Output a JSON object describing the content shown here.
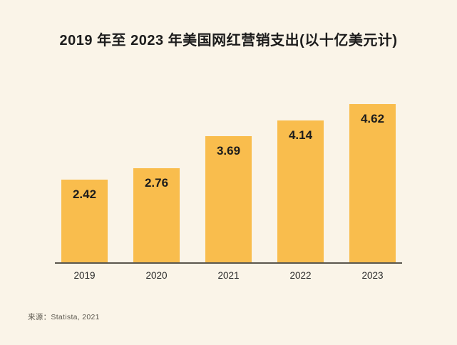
{
  "title": "2019 年至 2023 年美国网红营销支出(以十亿美元计)",
  "source_note": "来源：Statista, 2021",
  "colors": {
    "background": "#FAF4E8",
    "bar": "#F9BD4D",
    "text": "#1C1C1C",
    "axis_line": "#5A564D",
    "source_text": "#5C584F"
  },
  "chart_data": {
    "type": "bar",
    "title": "2019 年至 2023 年美国网红营销支出(以十亿美元计)",
    "categories": [
      "2019",
      "2020",
      "2021",
      "2022",
      "2023"
    ],
    "values": [
      2.42,
      2.76,
      3.69,
      4.14,
      4.62
    ],
    "data_labels": [
      "2.42",
      "2.76",
      "3.69",
      "4.14",
      "4.62"
    ],
    "xlabel": "",
    "ylabel": "",
    "ylim": [
      0,
      5
    ],
    "grid": false,
    "legend": false,
    "bar_color": "#F9BD4D",
    "value_labels_position": "inside-top",
    "source": "来源：Statista, 2021"
  }
}
